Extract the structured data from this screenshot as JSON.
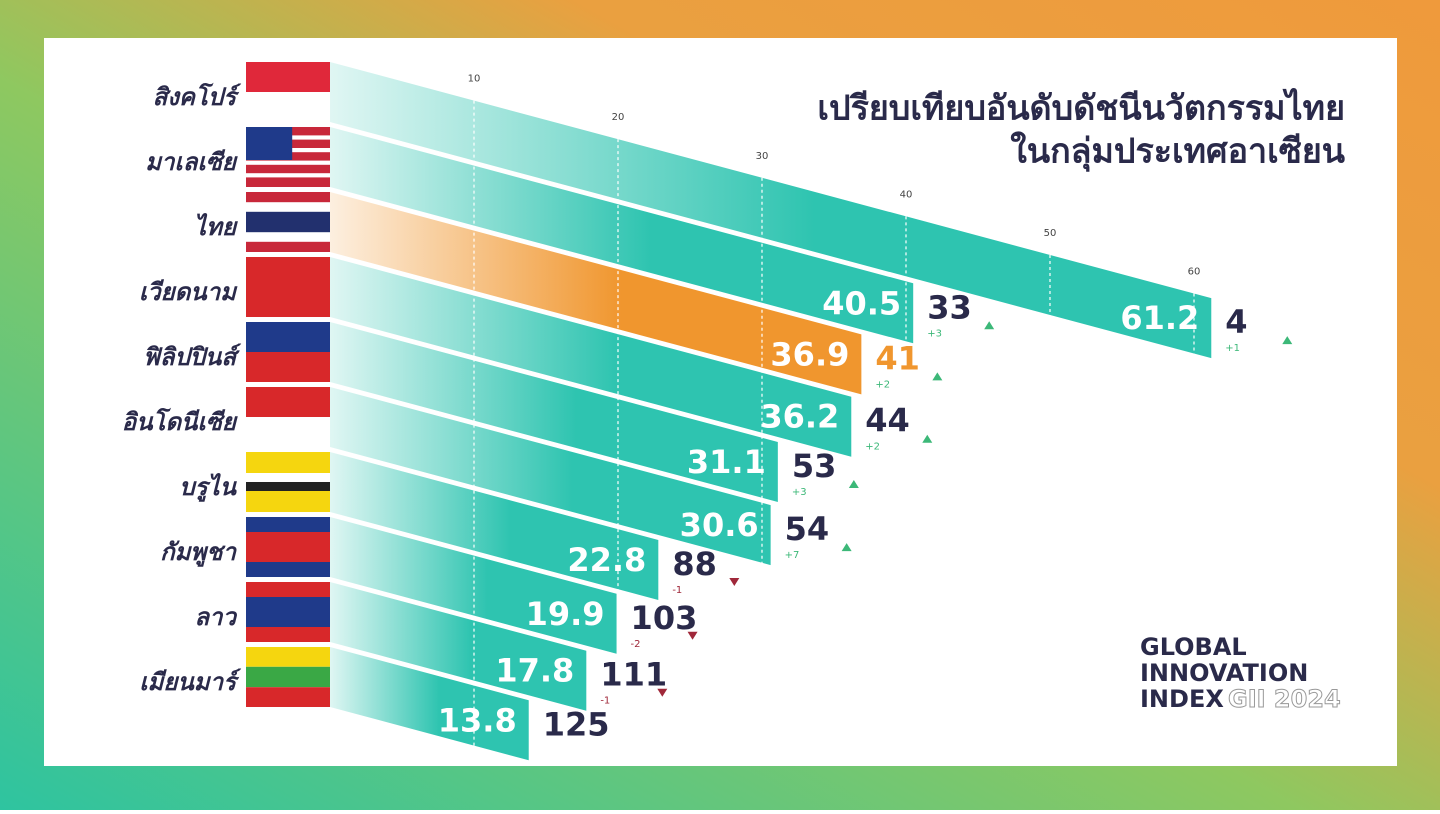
{
  "chart_data": {
    "type": "bar",
    "title": "เปรียบเทียบอันดับดัชนีนวัตกรรมไทย",
    "subtitle": "ในกลุ่มประเทศอาเซียน",
    "categories": [
      "สิงคโปร์",
      "มาเลเซีย",
      "ไทย",
      "เวียดนาม",
      "ฟิลิปปินส์",
      "อินโดนีเซีย",
      "บรูไน",
      "กัมพูชา",
      "ลาว",
      "เมียนมาร์"
    ],
    "values": [
      61.2,
      40.5,
      36.9,
      36.2,
      31.1,
      30.6,
      22.8,
      19.9,
      17.8,
      13.8
    ],
    "colors": [
      "#2ec4b0",
      "#2ec4b0",
      "#f0962e",
      "#2ec4b0",
      "#2ec4b0",
      "#2ec4b0",
      "#2ec4b0",
      "#2ec4b0",
      "#2ec4b0",
      "#2ec4b0"
    ],
    "color": "#2ec4b0",
    "ranks": [
      4,
      33,
      41,
      44,
      53,
      54,
      88,
      103,
      111,
      125
    ],
    "rank_changes": {
      "values": [
        1,
        3,
        2,
        2,
        3,
        7,
        -1,
        -2,
        -1,
        null
      ],
      "value_labels": [
        "+1",
        "+3",
        "+2",
        "+2",
        "+3",
        "+7",
        "-1",
        "-2",
        "-1",
        null
      ]
    },
    "xlim": [
      0,
      65
    ],
    "xticks": [
      10,
      20,
      30,
      40,
      50,
      60
    ],
    "grid": true,
    "source": {
      "lines": [
        "GLOBAL",
        "INNOVATION",
        "INDEX"
      ],
      "tag": "GII 2024"
    }
  }
}
